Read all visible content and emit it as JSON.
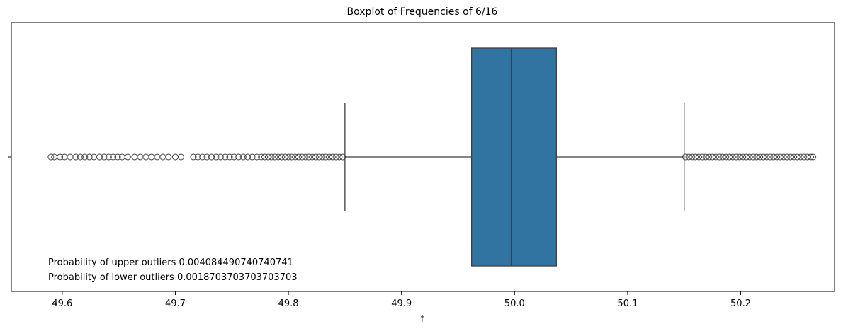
{
  "chart_data": {
    "type": "boxplot",
    "title": "Boxplot of Frequencies of 6/16",
    "xlabel": "f",
    "ylabel": "",
    "xlim": [
      49.555,
      50.283
    ],
    "xticks": [
      49.6,
      49.7,
      49.8,
      49.9,
      50.0,
      50.1,
      50.2
    ],
    "xtick_labels": [
      "49.6",
      "49.7",
      "49.8",
      "49.9",
      "50.0",
      "50.1",
      "50.2"
    ],
    "grid": false,
    "box": {
      "q1": 49.962,
      "median": 49.997,
      "q3": 50.037,
      "whisker_low": 49.85,
      "whisker_high": 50.15,
      "color": "#3274a1",
      "line_color": "#3f3f3f"
    },
    "outliers_low": [
      49.59,
      49.593,
      49.598,
      49.602,
      49.607,
      49.612,
      49.616,
      49.62,
      49.624,
      49.628,
      49.633,
      49.637,
      49.641,
      49.645,
      49.649,
      49.653,
      49.658,
      49.664,
      49.669,
      49.674,
      49.679,
      49.684,
      49.689,
      49.694,
      49.7,
      49.705,
      49.716,
      49.72,
      49.724,
      49.728,
      49.732,
      49.736,
      49.74,
      49.744,
      49.748,
      49.752,
      49.756,
      49.76,
      49.764,
      49.768,
      49.772,
      49.776,
      49.779,
      49.782,
      49.785,
      49.788,
      49.791,
      49.794,
      49.797,
      49.8,
      49.803,
      49.806,
      49.809,
      49.812,
      49.815,
      49.818,
      49.821,
      49.824,
      49.827,
      49.83,
      49.833,
      49.836,
      49.839,
      49.842,
      49.845,
      49.848
    ],
    "outliers_high": [
      50.151,
      50.154,
      50.157,
      50.16,
      50.163,
      50.166,
      50.169,
      50.172,
      50.175,
      50.178,
      50.181,
      50.184,
      50.187,
      50.19,
      50.193,
      50.196,
      50.199,
      50.202,
      50.205,
      50.208,
      50.211,
      50.214,
      50.217,
      50.22,
      50.223,
      50.226,
      50.229,
      50.232,
      50.235,
      50.238,
      50.241,
      50.244,
      50.247,
      50.25,
      50.253,
      50.256,
      50.259,
      50.262,
      50.264
    ],
    "annotations": [
      "Probability of upper outliers 0.004084490740740741",
      "Probability of lower outliers 0.0018703703703703703"
    ]
  }
}
